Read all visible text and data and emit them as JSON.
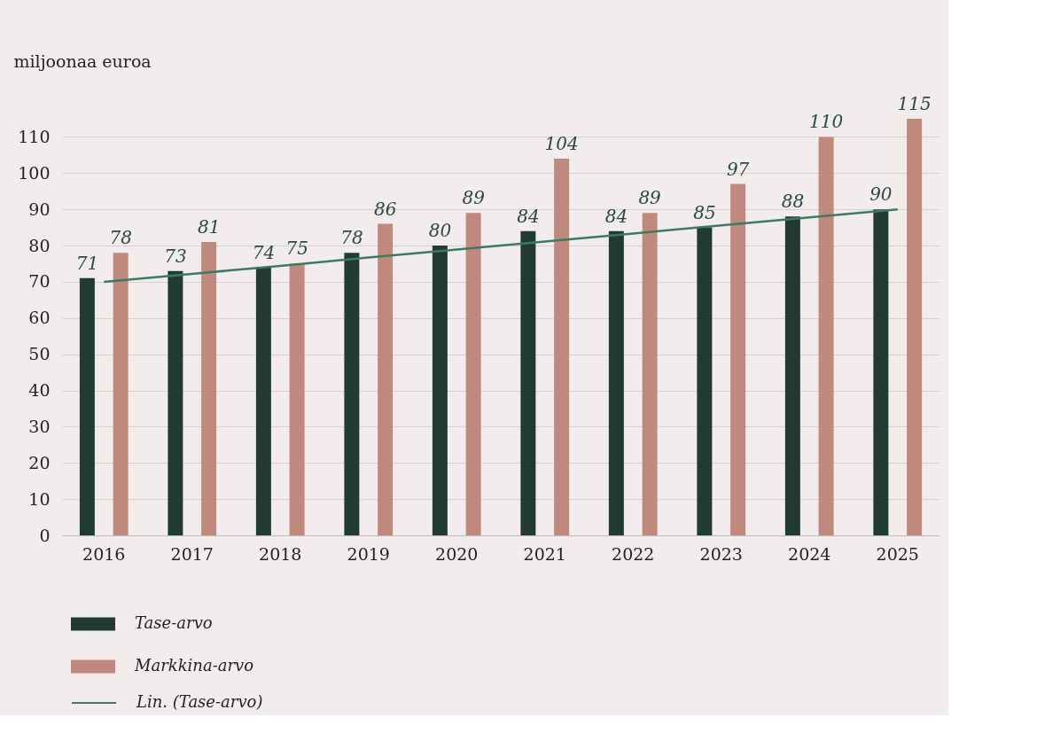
{
  "chart_data": {
    "type": "bar",
    "ylabel": "miljoonaa euroa",
    "categories": [
      "2016",
      "2017",
      "2018",
      "2019",
      "2020",
      "2021",
      "2022",
      "2023",
      "2024",
      "2025"
    ],
    "series": [
      {
        "name": "Tase-arvo",
        "color": "#213b32",
        "values": [
          71,
          73,
          74,
          78,
          80,
          84,
          84,
          85,
          88,
          90
        ],
        "value_labels": [
          "71",
          "73",
          "74",
          "78",
          "80",
          "84",
          "84",
          "85",
          "88",
          "90"
        ]
      },
      {
        "name": "Markkina-arvo",
        "color": "#c0897e",
        "values": [
          78,
          81,
          75,
          86,
          89,
          104,
          89,
          97,
          110,
          115
        ],
        "value_labels": [
          "78",
          "81",
          "75",
          "86",
          "89",
          "104",
          "89",
          "97",
          "110",
          "115"
        ]
      },
      {
        "name": "Lin. (Tase-arvo)",
        "color": "#3d7a66",
        "type": "line",
        "values": [
          70,
          72.2,
          74.4,
          76.7,
          78.9,
          81.1,
          83.3,
          85.6,
          87.8,
          90
        ]
      }
    ],
    "ylim": [
      0,
      115
    ],
    "yticks": [
      0,
      10,
      20,
      30,
      40,
      50,
      60,
      70,
      80,
      90,
      100,
      110
    ],
    "grid": "y",
    "legend": "bottom"
  }
}
